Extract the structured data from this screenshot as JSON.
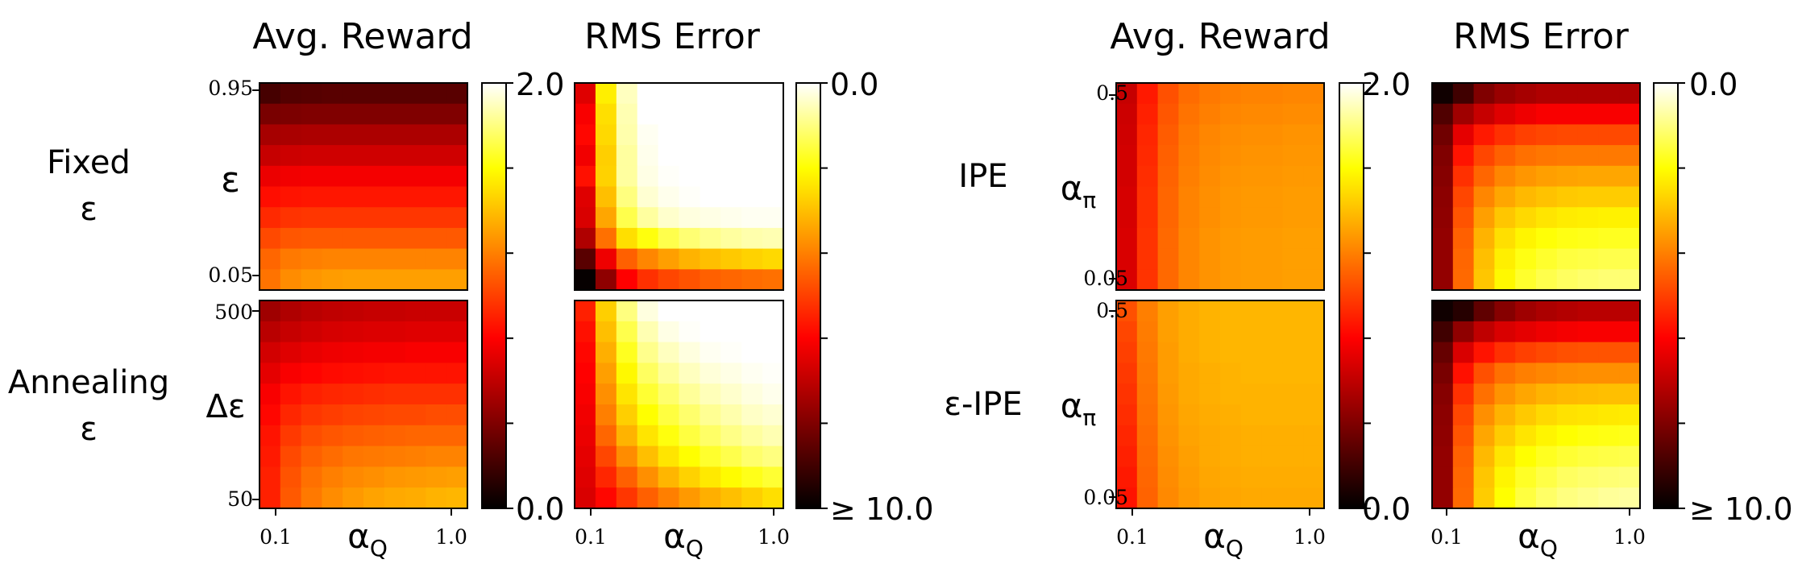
{
  "colormap": {
    "name": "hot",
    "stops": [
      "#000000",
      "#ff0000",
      "#ffff00",
      "#ffffff"
    ]
  },
  "chart_data": [
    {
      "id": "fixed-reward",
      "type": "heatmap",
      "title": "Avg. Reward",
      "row_label": "Fixed\nε",
      "ylabel": "ε",
      "ytick_labels": [
        "0.95",
        "0.05"
      ],
      "xlabel": "",
      "xtick_labels": [],
      "colorbar": {
        "max_label": "2.0",
        "min_label": "0.0",
        "vmin": 0.0,
        "vmax": 2.0,
        "reversed": false
      },
      "grid_shape": [
        10,
        10
      ],
      "note": "values ordered top row (ε=0.95) to bottom row (ε=0.05); columns αQ 0.1 to 1.0",
      "values": [
        [
          0.22,
          0.26,
          0.27,
          0.28,
          0.28,
          0.28,
          0.28,
          0.28,
          0.28,
          0.28
        ],
        [
          0.38,
          0.39,
          0.4,
          0.4,
          0.4,
          0.4,
          0.4,
          0.4,
          0.4,
          0.4
        ],
        [
          0.52,
          0.53,
          0.54,
          0.54,
          0.54,
          0.54,
          0.54,
          0.54,
          0.54,
          0.54
        ],
        [
          0.62,
          0.64,
          0.65,
          0.65,
          0.65,
          0.65,
          0.65,
          0.65,
          0.65,
          0.65
        ],
        [
          0.74,
          0.76,
          0.77,
          0.77,
          0.77,
          0.77,
          0.77,
          0.77,
          0.77,
          0.77
        ],
        [
          0.84,
          0.86,
          0.87,
          0.87,
          0.87,
          0.87,
          0.87,
          0.87,
          0.87,
          0.87
        ],
        [
          0.93,
          0.96,
          0.97,
          0.97,
          0.97,
          0.97,
          0.97,
          0.97,
          0.97,
          0.97
        ],
        [
          1.03,
          1.07,
          1.08,
          1.08,
          1.08,
          1.08,
          1.08,
          1.08,
          1.08,
          1.08
        ],
        [
          1.12,
          1.18,
          1.2,
          1.21,
          1.21,
          1.21,
          1.21,
          1.21,
          1.21,
          1.21
        ],
        [
          1.16,
          1.24,
          1.27,
          1.29,
          1.3,
          1.3,
          1.3,
          1.3,
          1.3,
          1.3
        ]
      ]
    },
    {
      "id": "fixed-rms",
      "type": "heatmap",
      "title": "RMS Error",
      "colorbar": {
        "max_label": "0.0",
        "min_label": "≥ 10.0",
        "vmin": 0.0,
        "vmax": 10.0,
        "reversed": true
      },
      "grid_shape": [
        10,
        10
      ],
      "note": "heat values on the color scale (2.0 = white, 0.0 = black)",
      "values": [
        [
          0.7,
          1.55,
          1.9,
          2.0,
          2.0,
          2.0,
          2.0,
          2.0,
          2.0,
          2.0
        ],
        [
          0.78,
          1.5,
          1.88,
          2.0,
          2.0,
          2.0,
          2.0,
          2.0,
          2.0,
          2.0
        ],
        [
          0.82,
          1.48,
          1.87,
          1.98,
          2.0,
          2.0,
          2.0,
          2.0,
          2.0,
          2.0
        ],
        [
          0.76,
          1.45,
          1.85,
          1.97,
          2.0,
          2.0,
          2.0,
          2.0,
          2.0,
          2.0
        ],
        [
          0.85,
          1.46,
          1.85,
          1.96,
          1.99,
          2.0,
          2.0,
          2.0,
          2.0,
          2.0
        ],
        [
          0.7,
          1.4,
          1.8,
          1.93,
          1.97,
          1.99,
          2.0,
          2.0,
          2.0,
          2.0
        ],
        [
          0.68,
          1.32,
          1.72,
          1.85,
          1.92,
          1.95,
          1.96,
          1.97,
          1.98,
          1.98
        ],
        [
          0.55,
          1.15,
          1.5,
          1.62,
          1.72,
          1.78,
          1.82,
          1.85,
          1.87,
          1.88
        ],
        [
          0.28,
          0.75,
          1.1,
          1.22,
          1.3,
          1.36,
          1.4,
          1.43,
          1.46,
          1.48
        ],
        [
          0.02,
          0.45,
          0.8,
          0.95,
          1.02,
          1.06,
          1.1,
          1.12,
          1.14,
          1.15
        ]
      ]
    },
    {
      "id": "anneal-reward",
      "type": "heatmap",
      "row_label": "Annealing\nε",
      "ylabel": "Δε",
      "ytick_labels": [
        "500",
        "50"
      ],
      "xlabel": "αQ",
      "xtick_labels": [
        "0.1",
        "1.0"
      ],
      "grid_shape": [
        10,
        10
      ],
      "values": [
        [
          0.5,
          0.55,
          0.58,
          0.6,
          0.61,
          0.62,
          0.62,
          0.63,
          0.63,
          0.63
        ],
        [
          0.58,
          0.62,
          0.65,
          0.67,
          0.68,
          0.69,
          0.69,
          0.7,
          0.7,
          0.7
        ],
        [
          0.66,
          0.7,
          0.73,
          0.75,
          0.76,
          0.77,
          0.77,
          0.78,
          0.78,
          0.78
        ],
        [
          0.72,
          0.78,
          0.81,
          0.83,
          0.84,
          0.85,
          0.86,
          0.86,
          0.86,
          0.86
        ],
        [
          0.78,
          0.86,
          0.9,
          0.92,
          0.93,
          0.94,
          0.95,
          0.95,
          0.95,
          0.95
        ],
        [
          0.82,
          0.92,
          0.97,
          0.99,
          1.01,
          1.02,
          1.03,
          1.03,
          1.04,
          1.04
        ],
        [
          0.86,
          0.98,
          1.04,
          1.07,
          1.09,
          1.1,
          1.11,
          1.12,
          1.12,
          1.12
        ],
        [
          0.88,
          1.03,
          1.1,
          1.14,
          1.17,
          1.18,
          1.19,
          1.2,
          1.21,
          1.21
        ],
        [
          0.9,
          1.06,
          1.15,
          1.2,
          1.23,
          1.25,
          1.27,
          1.28,
          1.29,
          1.3
        ],
        [
          0.9,
          1.08,
          1.18,
          1.24,
          1.28,
          1.31,
          1.33,
          1.34,
          1.36,
          1.37
        ]
      ]
    },
    {
      "id": "anneal-rms",
      "type": "heatmap",
      "xlabel": "αQ",
      "xtick_labels": [
        "0.1",
        "1.0"
      ],
      "grid_shape": [
        10,
        10
      ],
      "values": [
        [
          0.9,
          1.45,
          1.8,
          1.95,
          2.0,
          2.0,
          2.0,
          2.0,
          2.0,
          2.0
        ],
        [
          0.85,
          1.4,
          1.72,
          1.88,
          1.96,
          1.99,
          2.0,
          2.0,
          2.0,
          2.0
        ],
        [
          0.82,
          1.35,
          1.65,
          1.82,
          1.9,
          1.95,
          1.98,
          1.99,
          2.0,
          2.0
        ],
        [
          0.8,
          1.3,
          1.58,
          1.75,
          1.84,
          1.9,
          1.94,
          1.96,
          1.98,
          1.99
        ],
        [
          0.78,
          1.25,
          1.52,
          1.68,
          1.77,
          1.84,
          1.89,
          1.92,
          1.95,
          1.97
        ],
        [
          0.76,
          1.2,
          1.45,
          1.6,
          1.7,
          1.77,
          1.83,
          1.87,
          1.91,
          1.93
        ],
        [
          0.74,
          1.12,
          1.36,
          1.52,
          1.62,
          1.7,
          1.76,
          1.81,
          1.85,
          1.88
        ],
        [
          0.72,
          1.02,
          1.24,
          1.4,
          1.52,
          1.6,
          1.67,
          1.72,
          1.77,
          1.8
        ],
        [
          0.7,
          0.92,
          1.1,
          1.25,
          1.37,
          1.46,
          1.53,
          1.59,
          1.64,
          1.68
        ],
        [
          0.68,
          0.82,
          0.97,
          1.1,
          1.2,
          1.28,
          1.35,
          1.4,
          1.45,
          1.5
        ]
      ]
    },
    {
      "id": "ipe-reward",
      "type": "heatmap",
      "title": "Avg. Reward",
      "row_label": "IPE",
      "ylabel": "απ",
      "ytick_labels": [
        "0.5",
        "0.05"
      ],
      "colorbar": {
        "max_label": "2.0",
        "min_label": "0.0",
        "vmin": 0.0,
        "vmax": 2.0,
        "reversed": false
      },
      "grid_shape": [
        10,
        10
      ],
      "values": [
        [
          0.62,
          0.88,
          1.05,
          1.14,
          1.18,
          1.2,
          1.21,
          1.21,
          1.22,
          1.22
        ],
        [
          0.64,
          0.9,
          1.07,
          1.16,
          1.2,
          1.22,
          1.23,
          1.23,
          1.24,
          1.24
        ],
        [
          0.65,
          0.92,
          1.09,
          1.18,
          1.22,
          1.24,
          1.25,
          1.25,
          1.26,
          1.26
        ],
        [
          0.66,
          0.93,
          1.1,
          1.19,
          1.23,
          1.25,
          1.26,
          1.26,
          1.27,
          1.27
        ],
        [
          0.66,
          0.94,
          1.11,
          1.2,
          1.24,
          1.26,
          1.27,
          1.27,
          1.28,
          1.28
        ],
        [
          0.67,
          0.95,
          1.12,
          1.21,
          1.25,
          1.27,
          1.28,
          1.28,
          1.29,
          1.29
        ],
        [
          0.67,
          0.95,
          1.12,
          1.21,
          1.25,
          1.27,
          1.28,
          1.28,
          1.29,
          1.29
        ],
        [
          0.68,
          0.96,
          1.13,
          1.22,
          1.26,
          1.28,
          1.29,
          1.29,
          1.3,
          1.3
        ],
        [
          0.68,
          0.96,
          1.13,
          1.22,
          1.26,
          1.28,
          1.29,
          1.29,
          1.3,
          1.3
        ],
        [
          0.68,
          0.96,
          1.13,
          1.22,
          1.26,
          1.28,
          1.29,
          1.29,
          1.3,
          1.3
        ]
      ]
    },
    {
      "id": "ipe-rms",
      "type": "heatmap",
      "title": "RMS Error",
      "colorbar": {
        "max_label": "0.0",
        "min_label": "≥ 10.0",
        "vmin": 0.0,
        "vmax": 10.0,
        "reversed": true
      },
      "grid_shape": [
        10,
        10
      ],
      "values": [
        [
          0.05,
          0.2,
          0.4,
          0.48,
          0.52,
          0.55,
          0.55,
          0.55,
          0.55,
          0.55
        ],
        [
          0.25,
          0.5,
          0.62,
          0.7,
          0.75,
          0.78,
          0.78,
          0.78,
          0.78,
          0.78
        ],
        [
          0.35,
          0.72,
          0.88,
          0.95,
          1.0,
          1.02,
          1.03,
          1.03,
          1.03,
          1.03
        ],
        [
          0.4,
          0.86,
          1.02,
          1.1,
          1.15,
          1.17,
          1.18,
          1.18,
          1.18,
          1.18
        ],
        [
          0.42,
          0.95,
          1.12,
          1.22,
          1.27,
          1.3,
          1.31,
          1.32,
          1.32,
          1.32
        ],
        [
          0.44,
          1.02,
          1.22,
          1.32,
          1.38,
          1.41,
          1.43,
          1.44,
          1.44,
          1.44
        ],
        [
          0.45,
          1.06,
          1.3,
          1.42,
          1.48,
          1.52,
          1.54,
          1.55,
          1.56,
          1.56
        ],
        [
          0.46,
          1.1,
          1.36,
          1.5,
          1.57,
          1.61,
          1.63,
          1.64,
          1.65,
          1.65
        ],
        [
          0.46,
          1.12,
          1.4,
          1.55,
          1.63,
          1.67,
          1.7,
          1.71,
          1.72,
          1.72
        ],
        [
          0.46,
          1.13,
          1.42,
          1.58,
          1.67,
          1.72,
          1.75,
          1.77,
          1.78,
          1.78
        ]
      ]
    },
    {
      "id": "eipe-reward",
      "type": "heatmap",
      "row_label": "ε-IPE",
      "ylabel": "απ",
      "ytick_labels": [
        "0.5",
        "0.05"
      ],
      "xlabel": "αQ",
      "xtick_labels": [
        "0.1",
        "1.0"
      ],
      "grid_shape": [
        10,
        10
      ],
      "values": [
        [
          1.05,
          1.2,
          1.3,
          1.34,
          1.36,
          1.37,
          1.37,
          1.37,
          1.37,
          1.37
        ],
        [
          1.02,
          1.19,
          1.3,
          1.34,
          1.36,
          1.37,
          1.37,
          1.37,
          1.37,
          1.37
        ],
        [
          1.0,
          1.18,
          1.29,
          1.34,
          1.36,
          1.37,
          1.37,
          1.37,
          1.37,
          1.37
        ],
        [
          0.98,
          1.17,
          1.29,
          1.33,
          1.35,
          1.36,
          1.37,
          1.37,
          1.37,
          1.37
        ],
        [
          0.96,
          1.16,
          1.28,
          1.33,
          1.35,
          1.36,
          1.36,
          1.36,
          1.36,
          1.36
        ],
        [
          0.94,
          1.15,
          1.27,
          1.32,
          1.34,
          1.35,
          1.36,
          1.36,
          1.36,
          1.36
        ],
        [
          0.92,
          1.14,
          1.26,
          1.31,
          1.33,
          1.34,
          1.35,
          1.35,
          1.35,
          1.35
        ],
        [
          0.9,
          1.13,
          1.25,
          1.3,
          1.33,
          1.34,
          1.35,
          1.35,
          1.35,
          1.35
        ],
        [
          0.88,
          1.12,
          1.24,
          1.29,
          1.32,
          1.33,
          1.34,
          1.34,
          1.34,
          1.34
        ],
        [
          0.86,
          1.11,
          1.23,
          1.28,
          1.31,
          1.32,
          1.33,
          1.33,
          1.33,
          1.33
        ]
      ]
    },
    {
      "id": "eipe-rms",
      "type": "heatmap",
      "xlabel": "αQ",
      "xtick_labels": [
        "0.1",
        "1.0"
      ],
      "colorbar": {
        "max_label": "0.0",
        "min_label": "≥ 10.0",
        "vmin": 0.0,
        "vmax": 10.0,
        "reversed": true
      },
      "grid_shape": [
        10,
        10
      ],
      "values": [
        [
          0.05,
          0.12,
          0.3,
          0.42,
          0.5,
          0.54,
          0.56,
          0.58,
          0.58,
          0.58
        ],
        [
          0.2,
          0.45,
          0.6,
          0.68,
          0.72,
          0.75,
          0.77,
          0.78,
          0.78,
          0.78
        ],
        [
          0.32,
          0.68,
          0.86,
          0.95,
          1.0,
          1.03,
          1.05,
          1.06,
          1.06,
          1.06
        ],
        [
          0.38,
          0.85,
          1.05,
          1.15,
          1.2,
          1.22,
          1.24,
          1.25,
          1.25,
          1.25
        ],
        [
          0.42,
          0.95,
          1.15,
          1.26,
          1.32,
          1.36,
          1.38,
          1.39,
          1.4,
          1.4
        ],
        [
          0.44,
          1.02,
          1.25,
          1.36,
          1.43,
          1.48,
          1.51,
          1.52,
          1.53,
          1.54
        ],
        [
          0.45,
          1.06,
          1.32,
          1.44,
          1.52,
          1.57,
          1.6,
          1.62,
          1.63,
          1.64
        ],
        [
          0.46,
          1.1,
          1.38,
          1.52,
          1.6,
          1.65,
          1.68,
          1.7,
          1.71,
          1.72
        ],
        [
          0.46,
          1.12,
          1.42,
          1.57,
          1.66,
          1.71,
          1.75,
          1.77,
          1.78,
          1.79
        ],
        [
          0.46,
          1.13,
          1.44,
          1.6,
          1.7,
          1.76,
          1.8,
          1.82,
          1.84,
          1.85
        ]
      ]
    }
  ]
}
